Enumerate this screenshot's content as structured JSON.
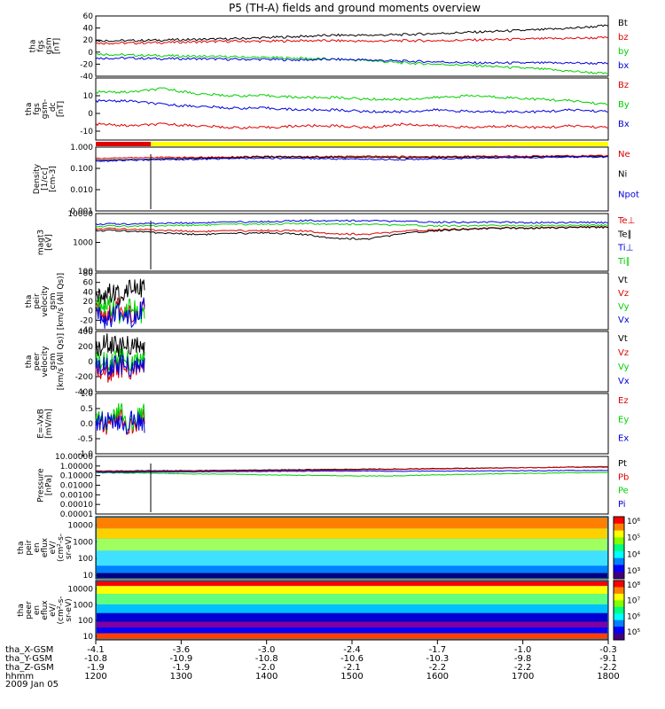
{
  "title": "P5 (TH-A) fields and ground moments overview",
  "date_label": "2009 Jan 05",
  "colors": {
    "black": "#000000",
    "red": "#e00000",
    "green": "#00d000",
    "blue": "#0000e0",
    "yellow": "#ffff00"
  },
  "chart_data": [
    {
      "type": "line",
      "ylabel": [
        "tha",
        "fgs",
        "gsm",
        "[nT]"
      ],
      "ylim": [
        -40,
        60
      ],
      "ticks": [
        "60",
        "40",
        "20",
        "0",
        "-20",
        "-40"
      ],
      "tick_values": [
        60,
        40,
        20,
        0,
        -20,
        -40
      ],
      "log": false,
      "series": [
        {
          "name": "Bt",
          "color": "black",
          "values": [
            19,
            19,
            20,
            21,
            22,
            24,
            26,
            28,
            28,
            29,
            31,
            33,
            35,
            37,
            40,
            44
          ]
        },
        {
          "name": "bz",
          "color": "red",
          "values": [
            15,
            15,
            16,
            17,
            18,
            18,
            19,
            19,
            18,
            19,
            19,
            20,
            21,
            22,
            23,
            24
          ]
        },
        {
          "name": "by",
          "color": "green",
          "values": [
            -3,
            -5,
            -6,
            -7,
            -8,
            -9,
            -10,
            -12,
            -14,
            -18,
            -20,
            -22,
            -25,
            -28,
            -32,
            -36
          ]
        },
        {
          "name": "bx",
          "color": "blue",
          "values": [
            -10,
            -10,
            -11,
            -11,
            -12,
            -12,
            -13,
            -12,
            -13,
            -15,
            -16,
            -18,
            -18,
            -18,
            -18,
            -19
          ]
        }
      ]
    },
    {
      "type": "line",
      "ylabel": [
        "tha",
        "fgs",
        "gsm-",
        "_dc",
        "[nT]"
      ],
      "ylim": [
        -15,
        20
      ],
      "ticks": [
        "10",
        "0",
        "-10"
      ],
      "tick_values": [
        10,
        0,
        -10
      ],
      "log": false,
      "series": [
        {
          "name": "Bz",
          "color": "red",
          "values": [
            -6,
            -7,
            -6,
            -7,
            -8,
            -8,
            -7,
            -7,
            -8,
            -6,
            -7,
            -8,
            -7,
            -8,
            -7,
            -8
          ]
        },
        {
          "name": "By",
          "color": "green",
          "values": [
            12,
            12,
            14,
            11,
            10,
            10,
            9,
            9,
            8,
            8,
            9,
            10,
            9,
            8,
            7,
            5
          ]
        },
        {
          "name": "Bx",
          "color": "blue",
          "values": [
            7,
            7,
            5,
            4,
            3,
            3,
            2,
            2,
            1,
            1,
            2,
            1,
            1,
            1,
            2,
            1
          ]
        }
      ]
    },
    {
      "type": "line",
      "ylabel": [
        "Density",
        "[1/cc]",
        "[cm-3]"
      ],
      "ylim": [
        0.001,
        1
      ],
      "ticks": [
        "1.000",
        "0.100",
        "0.010",
        "0.001"
      ],
      "tick_values": [
        1,
        0.1,
        0.01,
        0.001
      ],
      "log": true,
      "series": [
        {
          "name": "Ne",
          "color": "red",
          "values": [
            0.3,
            0.32,
            0.33,
            0.33,
            0.35,
            0.36,
            0.36,
            0.36,
            0.37,
            0.36,
            0.36,
            0.37,
            0.38,
            0.38,
            0.39,
            0.4
          ]
        },
        {
          "name": "Ni",
          "color": "black",
          "values": [
            0.25,
            0.26,
            0.28,
            0.3,
            0.32,
            0.34,
            0.34,
            0.33,
            0.33,
            0.32,
            0.33,
            0.34,
            0.34,
            0.35,
            0.36,
            0.36
          ]
        },
        {
          "name": "Npot",
          "color": "blue",
          "values": [
            0.22,
            0.24,
            0.26,
            0.27,
            0.29,
            0.3,
            0.3,
            0.28,
            0.27,
            0.26,
            0.28,
            0.3,
            0.32,
            0.33,
            0.34,
            0.34
          ]
        }
      ]
    },
    {
      "type": "line",
      "ylabel": [
        "magt3",
        "[eV]"
      ],
      "ylim": [
        100,
        10000
      ],
      "ticks": [
        "10000",
        "1000",
        "100"
      ],
      "tick_values": [
        10000,
        1000,
        100
      ],
      "log": true,
      "series": [
        {
          "name": "Te⊥",
          "color": "red",
          "values": [
            3000,
            2900,
            2600,
            2400,
            2500,
            2600,
            2500,
            2000,
            1900,
            2400,
            2800,
            3000,
            3200,
            3300,
            3400,
            3500
          ]
        },
        {
          "name": "Te∥",
          "color": "black",
          "values": [
            2600,
            2500,
            2100,
            1900,
            2000,
            2200,
            1900,
            1400,
            1300,
            2000,
            2600,
            2900,
            3100,
            3200,
            3300,
            3400
          ]
        },
        {
          "name": "Ti⊥",
          "color": "blue",
          "values": [
            4300,
            4400,
            4600,
            4800,
            5000,
            5300,
            5600,
            5800,
            5600,
            5300,
            5100,
            5000,
            5000,
            4900,
            4900,
            4900
          ]
        },
        {
          "name": "Ti∥",
          "color": "green",
          "values": [
            3600,
            3700,
            3800,
            4000,
            4200,
            4400,
            4500,
            4400,
            4200,
            3900,
            3800,
            3800,
            3800,
            3900,
            3900,
            4000
          ]
        }
      ]
    },
    {
      "type": "line",
      "ylabel": [
        "tha",
        "peir",
        "velocity",
        "gsm",
        "[km/s (All Qs)]"
      ],
      "ylim": [
        -40,
        80
      ],
      "ticks": [
        "80",
        "60",
        "40",
        "20",
        "0",
        "-20",
        "-40"
      ],
      "tick_values": [
        80,
        60,
        40,
        20,
        0,
        -20,
        -40
      ],
      "log": false,
      "series": [
        {
          "name": "Vt",
          "color": "black",
          "values": [
            20,
            40,
            30,
            60,
            45
          ]
        },
        {
          "name": "Vz",
          "color": "red",
          "values": [
            0,
            -10,
            10,
            -5,
            5
          ]
        },
        {
          "name": "Vy",
          "color": "green",
          "values": [
            5,
            15,
            -10,
            20,
            -15
          ]
        },
        {
          "name": "Vx",
          "color": "blue",
          "values": [
            -10,
            -20,
            0,
            -15,
            10
          ]
        }
      ]
    },
    {
      "type": "line",
      "ylabel": [
        "tha",
        "peer",
        "velocity",
        "gsm",
        "[km/s (All Qs)]"
      ],
      "ylim": [
        -400,
        400
      ],
      "ticks": [
        "400",
        "200",
        "0",
        "-200",
        "-400"
      ],
      "tick_values": [
        400,
        200,
        0,
        -200,
        -400
      ],
      "log": false,
      "series": [
        {
          "name": "Vt",
          "color": "black",
          "values": [
            150,
            250,
            180,
            220,
            160
          ]
        },
        {
          "name": "Vz",
          "color": "red",
          "values": [
            -100,
            -150,
            -80,
            -120,
            -60
          ]
        },
        {
          "name": "Vy",
          "color": "green",
          "values": [
            20,
            -20,
            40,
            -10,
            30
          ]
        },
        {
          "name": "Vx",
          "color": "blue",
          "values": [
            -60,
            -80,
            -40,
            -90,
            -50
          ]
        }
      ]
    },
    {
      "type": "line",
      "ylabel": [
        "E=-VxB",
        "[mV/m]"
      ],
      "ylim": [
        -1,
        1
      ],
      "ticks": [
        "1.0",
        "0.5",
        "0.0",
        "-0.5",
        "-1.0"
      ],
      "tick_values": [
        1,
        0.5,
        0,
        -0.5,
        -1
      ],
      "log": false,
      "series": [
        {
          "name": "Ez",
          "color": "red",
          "values": [
            0.1,
            -0.1,
            0.2,
            -0.2,
            0.3
          ]
        },
        {
          "name": "Ey",
          "color": "green",
          "values": [
            0.2,
            0.0,
            0.4,
            -0.1,
            0.5
          ]
        },
        {
          "name": "Ex",
          "color": "blue",
          "values": [
            0.0,
            0.1,
            -0.1,
            0.1,
            0.0
          ]
        }
      ]
    },
    {
      "type": "line",
      "ylabel": [
        "Pressure",
        "[nPa]"
      ],
      "ylim": [
        1e-05,
        10
      ],
      "ticks": [
        "10.00000",
        "1.00000",
        "0.10000",
        "0.01000",
        "0.00100",
        "0.00010",
        "0.00001"
      ],
      "tick_values": [
        10,
        1,
        0.1,
        0.01,
        0.001,
        0.0001,
        1e-05
      ],
      "log": true,
      "series": [
        {
          "name": "Pt",
          "color": "black",
          "values": [
            0.3,
            0.32,
            0.33,
            0.34,
            0.36,
            0.4,
            0.42,
            0.45,
            0.48,
            0.5,
            0.55,
            0.6,
            0.65,
            0.7,
            0.75,
            0.8
          ]
        },
        {
          "name": "Pb",
          "color": "red",
          "values": [
            0.26,
            0.27,
            0.28,
            0.3,
            0.32,
            0.34,
            0.36,
            0.38,
            0.42,
            0.46,
            0.5,
            0.55,
            0.62,
            0.7,
            0.8,
            0.9
          ]
        },
        {
          "name": "Pe",
          "color": "green",
          "values": [
            0.2,
            0.19,
            0.17,
            0.15,
            0.14,
            0.12,
            0.11,
            0.1,
            0.09,
            0.1,
            0.12,
            0.14,
            0.16,
            0.18,
            0.2,
            0.22
          ]
        },
        {
          "name": "Pi",
          "color": "blue",
          "values": [
            0.22,
            0.23,
            0.24,
            0.25,
            0.26,
            0.28,
            0.29,
            0.3,
            0.3,
            0.29,
            0.3,
            0.31,
            0.32,
            0.33,
            0.34,
            0.35
          ]
        }
      ]
    },
    {
      "type": "heatmap",
      "ylabel": [
        "tha",
        "peir",
        "en",
        "eflux",
        "eV/",
        "(cm²-s-",
        "sr-eV)"
      ],
      "ticks": [
        "10000",
        "1000",
        "100",
        "10"
      ],
      "tick_values": [
        10000,
        1000,
        100,
        10
      ],
      "colorbar_ticks": [
        "10⁶",
        "10⁵",
        "10⁴",
        "10³"
      ]
    },
    {
      "type": "heatmap",
      "ylabel": [
        "tha",
        "peer",
        "en",
        "eflux",
        "eV/",
        "(cm²-s-",
        "sr-eV)"
      ],
      "ticks": [
        "10000",
        "1000",
        "100",
        "10"
      ],
      "tick_values": [
        10000,
        1000,
        100,
        10
      ],
      "colorbar_ticks": [
        "10⁸",
        "10⁷",
        "10⁶",
        "10⁵"
      ]
    }
  ],
  "x_axis": {
    "row_labels": [
      "tha_X-GSM",
      "tha_Y-GSM",
      "tha_Z-GSM",
      "hhmm"
    ],
    "ticks": [
      {
        "x": "-4.1",
        "y": "-10.8",
        "z": "-1.9",
        "t": "1200"
      },
      {
        "x": "-3.6",
        "y": "-10.9",
        "z": "-1.9",
        "t": "1300"
      },
      {
        "x": "-3.0",
        "y": "-10.8",
        "z": "-2.0",
        "t": "1400"
      },
      {
        "x": "-2.4",
        "y": "-10.6",
        "z": "-2.1",
        "t": "1500"
      },
      {
        "x": "-1.7",
        "y": "-10.3",
        "z": "-2.2",
        "t": "1600"
      },
      {
        "x": "-1.0",
        "y": "-9.8",
        "z": "-2.2",
        "t": "1700"
      },
      {
        "x": "-0.3",
        "y": "-9.1",
        "z": "-2.2",
        "t": "1800"
      }
    ]
  }
}
